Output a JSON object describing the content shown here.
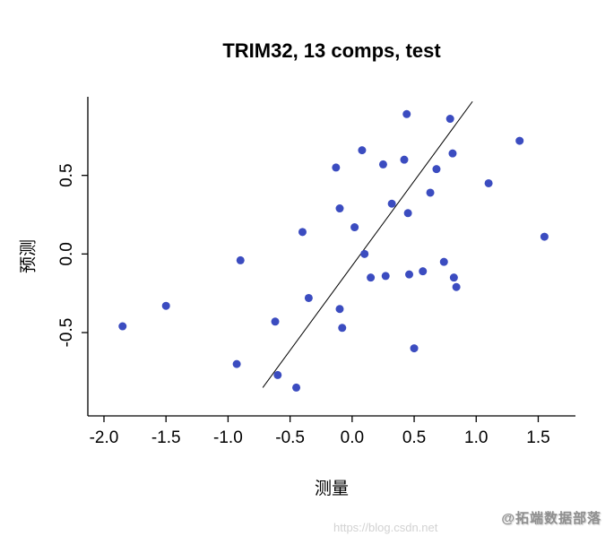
{
  "chart_data": {
    "type": "scatter",
    "title": "TRIM32, 13 comps, test",
    "xlabel": "测量",
    "ylabel": "预测",
    "xlim": [
      -2.13,
      1.8
    ],
    "ylim": [
      -1.03,
      1.0
    ],
    "xtick_values": [
      -2.0,
      -1.5,
      -1.0,
      -0.5,
      0.0,
      0.5,
      1.0,
      1.5
    ],
    "xtick_labels": [
      "-2.0",
      "-1.5",
      "-1.0",
      "-0.5",
      "0.0",
      "0.5",
      "1.0",
      "1.5"
    ],
    "ytick_values": [
      -0.5,
      0.0,
      0.5
    ],
    "ytick_labels": [
      "-0.5",
      "0.0",
      "0.5"
    ],
    "grid": false,
    "legend": "none",
    "point_color": "#3b4cc0",
    "line_color": "#000000",
    "fit_line": {
      "x1": -0.72,
      "y1": -0.85,
      "x2": 0.97,
      "y2": 0.97
    },
    "points": [
      [
        -1.85,
        -0.46
      ],
      [
        -1.5,
        -0.33
      ],
      [
        -0.93,
        -0.7
      ],
      [
        -0.9,
        -0.04
      ],
      [
        -0.62,
        -0.43
      ],
      [
        -0.6,
        -0.77
      ],
      [
        -0.45,
        -0.85
      ],
      [
        -0.4,
        0.14
      ],
      [
        -0.35,
        -0.28
      ],
      [
        -0.13,
        0.55
      ],
      [
        -0.1,
        0.29
      ],
      [
        -0.1,
        -0.35
      ],
      [
        -0.08,
        -0.47
      ],
      [
        0.02,
        0.17
      ],
      [
        0.08,
        0.66
      ],
      [
        0.1,
        0.0
      ],
      [
        0.15,
        -0.15
      ],
      [
        0.25,
        0.57
      ],
      [
        0.27,
        -0.14
      ],
      [
        0.32,
        0.32
      ],
      [
        0.42,
        0.6
      ],
      [
        0.44,
        0.89
      ],
      [
        0.45,
        0.26
      ],
      [
        0.46,
        -0.13
      ],
      [
        0.5,
        -0.6
      ],
      [
        0.57,
        -0.11
      ],
      [
        0.63,
        0.39
      ],
      [
        0.68,
        0.54
      ],
      [
        0.74,
        -0.05
      ],
      [
        0.79,
        0.86
      ],
      [
        0.81,
        0.64
      ],
      [
        0.82,
        -0.15
      ],
      [
        0.84,
        -0.21
      ],
      [
        1.1,
        0.45
      ],
      [
        1.35,
        0.72
      ],
      [
        1.55,
        0.11
      ]
    ]
  },
  "watermark": {
    "name": "@拓端数据部落",
    "url": "https://blog.csdn.net"
  }
}
